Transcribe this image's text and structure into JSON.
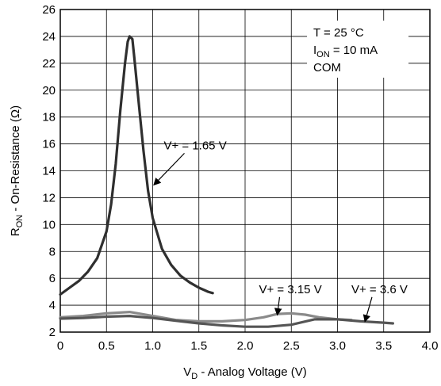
{
  "chart_data": {
    "type": "line",
    "xlabel": {
      "main": "V",
      "sub": "D",
      "rest": " - Analog Voltage (V)"
    },
    "ylabel": {
      "main": "R",
      "sub": "ON",
      "rest": " - On-Resistance (Ω)"
    },
    "xlim": [
      0,
      4.0
    ],
    "ylim": [
      2,
      26
    ],
    "x_ticks": [
      "0",
      "0.5",
      "1.0",
      "1.5",
      "2.0",
      "2.5",
      "3.0",
      "3.5",
      "4.0"
    ],
    "y_ticks": [
      "2",
      "4",
      "6",
      "8",
      "10",
      "12",
      "14",
      "16",
      "18",
      "20",
      "22",
      "24",
      "26"
    ],
    "grid": true,
    "legend": {
      "position": "top-right",
      "lines": [
        {
          "text": "T = 25 °C"
        },
        {
          "main": "I",
          "sub": "ON",
          "rest": " = 10 mA"
        },
        {
          "text": "COM"
        }
      ]
    },
    "series": [
      {
        "name": "V+ = 1.65 V",
        "color": "#2f2f2f",
        "x": [
          0.0,
          0.1,
          0.2,
          0.3,
          0.4,
          0.5,
          0.55,
          0.6,
          0.65,
          0.7,
          0.73,
          0.75,
          0.78,
          0.8,
          0.85,
          0.9,
          0.95,
          1.0,
          1.1,
          1.2,
          1.3,
          1.4,
          1.5,
          1.6,
          1.65
        ],
        "y": [
          4.8,
          5.3,
          5.8,
          6.5,
          7.5,
          9.5,
          11.5,
          14.5,
          18.5,
          22.0,
          23.6,
          24.0,
          23.8,
          22.5,
          19.0,
          15.5,
          12.5,
          10.5,
          8.2,
          7.0,
          6.2,
          5.7,
          5.3,
          5.0,
          4.9
        ]
      },
      {
        "name": "V+ = 3.15 V",
        "color": "#8a8a8a",
        "x": [
          0.0,
          0.25,
          0.5,
          0.75,
          1.0,
          1.25,
          1.5,
          1.75,
          2.0,
          2.2,
          2.35,
          2.5,
          2.65,
          2.8,
          3.0,
          3.15
        ],
        "y": [
          3.1,
          3.2,
          3.4,
          3.5,
          3.2,
          2.9,
          2.8,
          2.8,
          2.9,
          3.1,
          3.35,
          3.4,
          3.3,
          3.1,
          2.95,
          2.9
        ]
      },
      {
        "name": "V+ = 3.6 V",
        "color": "#555555",
        "x": [
          0.0,
          0.25,
          0.5,
          0.75,
          1.0,
          1.25,
          1.5,
          1.75,
          2.0,
          2.25,
          2.5,
          2.75,
          3.0,
          3.25,
          3.5,
          3.6
        ],
        "y": [
          3.0,
          3.05,
          3.15,
          3.2,
          3.05,
          2.85,
          2.65,
          2.5,
          2.4,
          2.4,
          2.55,
          2.95,
          2.95,
          2.8,
          2.7,
          2.65
        ]
      }
    ],
    "annotations": [
      {
        "text": "V+ = 1.65 V",
        "label_at": [
          1.12,
          15.6
        ],
        "arrow_to": [
          1.02,
          13.0
        ]
      },
      {
        "text": "V+ = 3.15 V",
        "label_at": [
          2.15,
          4.9
        ],
        "arrow_to": [
          2.35,
          3.35
        ]
      },
      {
        "text": "V+ = 3.6 V",
        "label_at": [
          3.15,
          4.9
        ],
        "arrow_to": [
          3.3,
          2.85
        ]
      }
    ]
  }
}
